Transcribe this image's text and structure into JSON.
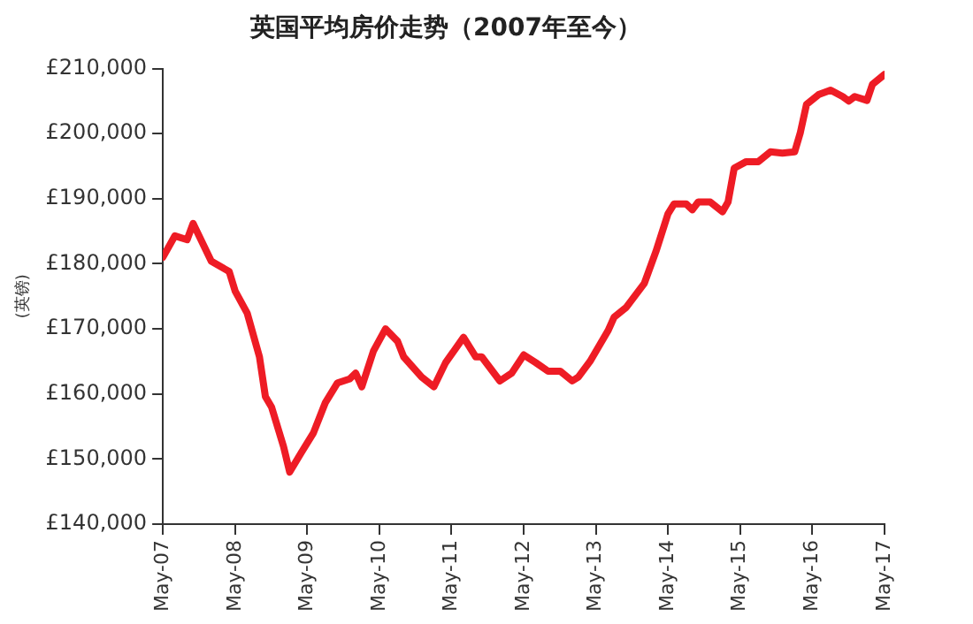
{
  "chart_data": {
    "type": "line",
    "title": "英国平均房价走势（2007年至今）",
    "ylabel": "(英镑)",
    "x": [
      "2007-05",
      "2007-07",
      "2007-09",
      "2007-10",
      "2008-01",
      "2008-04",
      "2008-05",
      "2008-07",
      "2008-09",
      "2008-10",
      "2008-11",
      "2009-01",
      "2009-02",
      "2009-04",
      "2009-06",
      "2009-08",
      "2009-10",
      "2009-12",
      "2010-01",
      "2010-02",
      "2010-04",
      "2010-06",
      "2010-08",
      "2010-09",
      "2010-12",
      "2011-02",
      "2011-04",
      "2011-07",
      "2011-09",
      "2011-10",
      "2012-01",
      "2012-03",
      "2012-05",
      "2012-07",
      "2012-09",
      "2012-11",
      "2013-01",
      "2013-02",
      "2013-04",
      "2013-07",
      "2013-08",
      "2013-10",
      "2014-01",
      "2014-03",
      "2014-05",
      "2014-06",
      "2014-08",
      "2014-09",
      "2014-10",
      "2014-12",
      "2015-02",
      "2015-03",
      "2015-04",
      "2015-06",
      "2015-08",
      "2015-10",
      "2015-12",
      "2016-02",
      "2016-03",
      "2016-04",
      "2016-06",
      "2016-08",
      "2016-10",
      "2016-11",
      "2016-12",
      "2017-02",
      "2017-03",
      "2017-05"
    ],
    "series": [
      {
        "color": "#ee1c25",
        "values": [
          181000,
          184300,
          183700,
          186200,
          180400,
          178800,
          175800,
          172400,
          165700,
          159600,
          158000,
          151900,
          148000,
          151000,
          154000,
          158700,
          161700,
          162300,
          163200,
          161100,
          166600,
          170000,
          168100,
          165700,
          162600,
          161100,
          164800,
          168700,
          165700,
          165700,
          162000,
          163200,
          166000,
          164800,
          163500,
          163500,
          162000,
          162600,
          165000,
          169700,
          171800,
          173300,
          177000,
          181900,
          187700,
          189200,
          189200,
          188300,
          189500,
          189500,
          188000,
          189500,
          194700,
          195700,
          195700,
          197200,
          197000,
          197200,
          200200,
          204500,
          206000,
          206700,
          205700,
          205000,
          205700,
          205100,
          207600,
          209100
        ]
      }
    ],
    "xlim": [
      "2007-05",
      "2017-05"
    ],
    "xticks": [
      {
        "value": "2007-05",
        "label": "May-07"
      },
      {
        "value": "2008-05",
        "label": "May-08"
      },
      {
        "value": "2009-05",
        "label": "May-09"
      },
      {
        "value": "2010-05",
        "label": "May-10"
      },
      {
        "value": "2011-05",
        "label": "May-11"
      },
      {
        "value": "2012-05",
        "label": "May-12"
      },
      {
        "value": "2013-05",
        "label": "May-13"
      },
      {
        "value": "2014-05",
        "label": "May-14"
      },
      {
        "value": "2015-05",
        "label": "May-15"
      },
      {
        "value": "2016-05",
        "label": "May-16"
      },
      {
        "value": "2017-05",
        "label": "May-17"
      }
    ],
    "ylim": [
      140000,
      210000
    ],
    "yticks": [
      {
        "value": 140000,
        "label": "£140,000"
      },
      {
        "value": 150000,
        "label": "£150,000"
      },
      {
        "value": 160000,
        "label": "£160,000"
      },
      {
        "value": 170000,
        "label": "£170,000"
      },
      {
        "value": 180000,
        "label": "£180,000"
      },
      {
        "value": 190000,
        "label": "£190,000"
      },
      {
        "value": 200000,
        "label": "£200,000"
      },
      {
        "value": 210000,
        "label": "£210,000"
      }
    ],
    "grid": false,
    "legend": false,
    "marker": "none",
    "line_style": "solid"
  }
}
